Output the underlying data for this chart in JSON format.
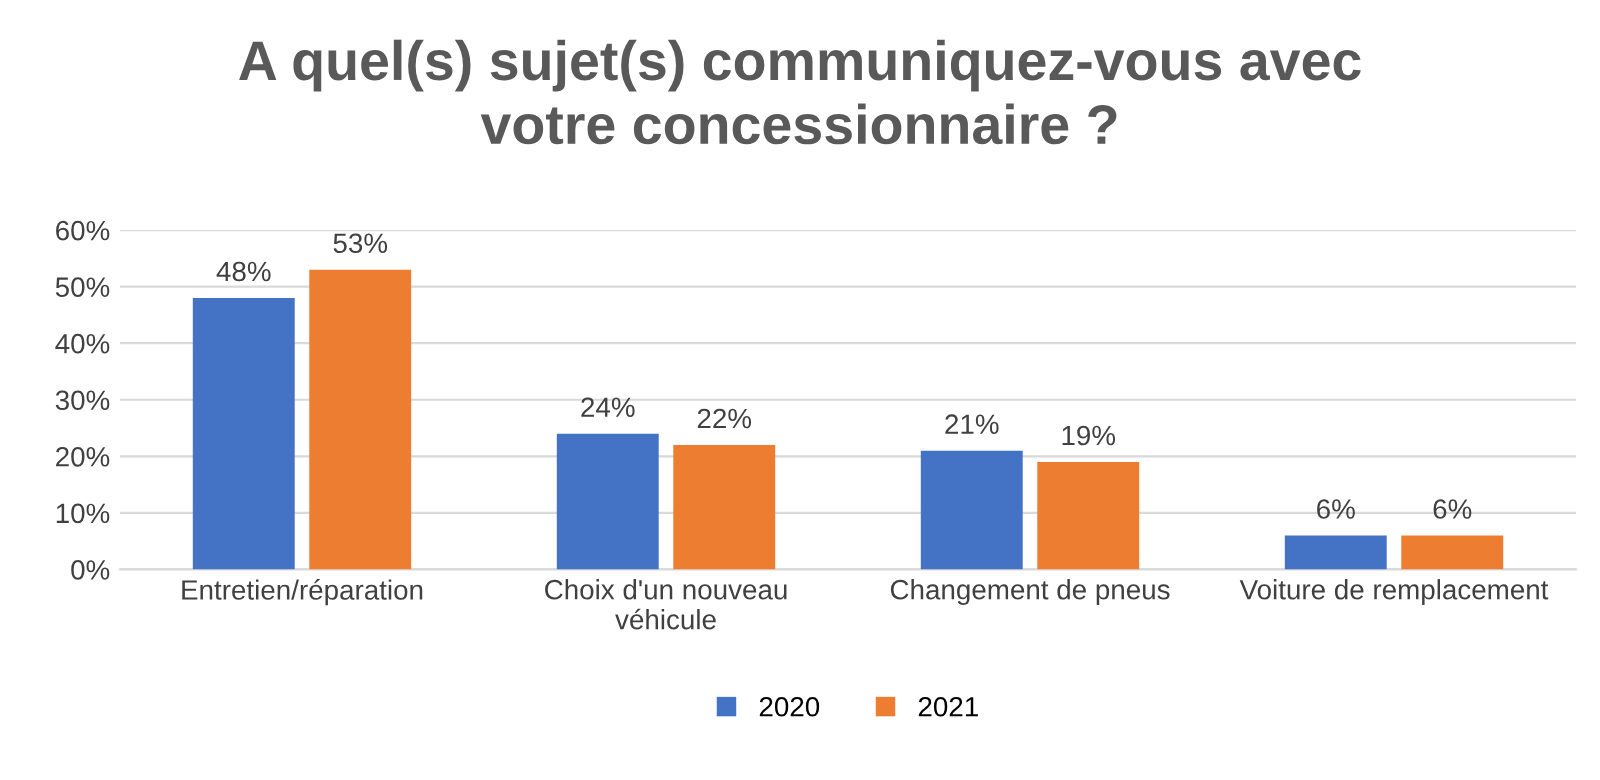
{
  "chart_data": {
    "type": "bar",
    "title": "A quel(s) sujet(s) communiquez-vous avec\nvotre concessionnaire ?",
    "categories": [
      "Entretien/réparation",
      "Choix d'un nouveau\nvéhicule",
      "Changement de pneus",
      "Voiture de remplacement"
    ],
    "series": [
      {
        "name": "2020",
        "color": "#4472c4",
        "values": [
          48,
          24,
          21,
          6
        ],
        "value_labels": [
          "48%",
          "24%",
          "21%",
          "6%"
        ]
      },
      {
        "name": "2021",
        "color": "#ed7d31",
        "values": [
          53,
          22,
          19,
          6
        ],
        "value_labels": [
          "53%",
          "22%",
          "19%",
          "6%"
        ]
      }
    ],
    "ylim": [
      0,
      60
    ],
    "yticks": [
      {
        "value": 0,
        "label": "0%"
      },
      {
        "value": 10,
        "label": "10%"
      },
      {
        "value": 20,
        "label": "20%"
      },
      {
        "value": 30,
        "label": "30%"
      },
      {
        "value": 40,
        "label": "40%"
      },
      {
        "value": 50,
        "label": "50%"
      },
      {
        "value": 60,
        "label": "60%"
      }
    ],
    "grid": "y",
    "legend": "bottom"
  }
}
